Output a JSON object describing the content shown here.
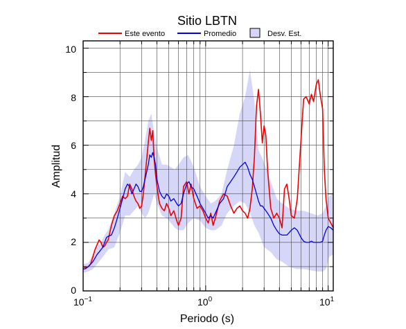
{
  "chart_data": {
    "type": "line",
    "title": "Sitio LBTN",
    "xlabel": "Periodo (s)",
    "ylabel": "Amplitud",
    "xscale": "log",
    "xlim": [
      0.1,
      11
    ],
    "ylim": [
      0,
      10.3
    ],
    "grid": true,
    "legend_position": "top",
    "legend": {
      "event": "Este evento",
      "mean": "Promedio",
      "std": "Desv. Est."
    },
    "x_ticks": [
      {
        "base": "10",
        "exp": "−1"
      },
      {
        "base": "10",
        "exp": "0"
      },
      {
        "base": "10",
        "exp": "1"
      }
    ],
    "y_ticks": [
      "0",
      "2",
      "4",
      "6",
      "8",
      "10"
    ],
    "colors": {
      "event": "#ee0000",
      "mean": "#0000dd",
      "band": "#d6d6f8",
      "band_edge": "#000000",
      "grid": "#444444"
    },
    "series": [
      {
        "name": "Este evento",
        "x": [
          0.1,
          0.105,
          0.11,
          0.115,
          0.12,
          0.125,
          0.13,
          0.135,
          0.14,
          0.145,
          0.15,
          0.155,
          0.16,
          0.17,
          0.18,
          0.19,
          0.2,
          0.21,
          0.22,
          0.23,
          0.24,
          0.25,
          0.26,
          0.27,
          0.28,
          0.29,
          0.3,
          0.31,
          0.32,
          0.33,
          0.34,
          0.35,
          0.36,
          0.37,
          0.38,
          0.39,
          0.4,
          0.42,
          0.44,
          0.46,
          0.48,
          0.5,
          0.52,
          0.55,
          0.58,
          0.6,
          0.63,
          0.66,
          0.7,
          0.73,
          0.76,
          0.8,
          0.85,
          0.9,
          0.95,
          1.0,
          1.05,
          1.1,
          1.15,
          1.2,
          1.3,
          1.4,
          1.5,
          1.6,
          1.7,
          1.8,
          1.9,
          2.0,
          2.1,
          2.2,
          2.3,
          2.4,
          2.5,
          2.6,
          2.7,
          2.8,
          2.9,
          3.0,
          3.1,
          3.2,
          3.4,
          3.6,
          3.8,
          4.0,
          4.2,
          4.4,
          4.6,
          4.8,
          5.0,
          5.3,
          5.6,
          6.0,
          6.3,
          6.6,
          7.0,
          7.3,
          7.6,
          8.0,
          8.3,
          8.6,
          9.0,
          9.3,
          9.6,
          10.0,
          10.5,
          11.0
        ],
        "y": [
          1.0,
          0.95,
          1.0,
          1.1,
          1.4,
          1.7,
          1.9,
          2.1,
          2.0,
          1.8,
          1.85,
          2.0,
          2.1,
          2.7,
          3.1,
          3.3,
          3.6,
          3.9,
          3.8,
          3.9,
          4.4,
          4.2,
          3.9,
          3.7,
          3.6,
          3.4,
          3.5,
          4.0,
          4.7,
          5.4,
          6.1,
          6.7,
          6.2,
          6.6,
          5.4,
          4.8,
          4.3,
          3.6,
          3.4,
          3.3,
          3.6,
          3.4,
          3.1,
          3.3,
          2.9,
          2.7,
          3.0,
          4.3,
          4.5,
          4.0,
          4.4,
          3.8,
          3.4,
          3.5,
          3.3,
          3.0,
          2.8,
          3.2,
          2.7,
          3.0,
          3.7,
          4.0,
          3.9,
          3.5,
          3.2,
          3.4,
          3.5,
          3.3,
          3.2,
          3.0,
          3.4,
          4.2,
          5.5,
          7.6,
          8.3,
          7.3,
          6.1,
          6.8,
          6.4,
          5.0,
          3.4,
          3.0,
          3.2,
          3.0,
          2.6,
          4.2,
          4.4,
          3.8,
          3.1,
          3.0,
          3.8,
          6.2,
          7.9,
          8.0,
          7.7,
          8.1,
          7.8,
          8.5,
          8.7,
          8.1,
          7.5,
          5.0,
          3.8,
          3.0,
          2.8,
          2.6
        ]
      },
      {
        "name": "Promedio",
        "x": [
          0.1,
          0.105,
          0.11,
          0.115,
          0.12,
          0.125,
          0.13,
          0.135,
          0.14,
          0.145,
          0.15,
          0.155,
          0.16,
          0.17,
          0.18,
          0.19,
          0.2,
          0.21,
          0.22,
          0.23,
          0.24,
          0.25,
          0.26,
          0.27,
          0.28,
          0.29,
          0.3,
          0.31,
          0.32,
          0.33,
          0.34,
          0.35,
          0.36,
          0.37,
          0.38,
          0.39,
          0.4,
          0.42,
          0.44,
          0.46,
          0.48,
          0.5,
          0.52,
          0.55,
          0.58,
          0.6,
          0.63,
          0.66,
          0.7,
          0.73,
          0.76,
          0.8,
          0.85,
          0.9,
          0.95,
          1.0,
          1.05,
          1.1,
          1.15,
          1.2,
          1.3,
          1.4,
          1.5,
          1.6,
          1.7,
          1.8,
          1.9,
          2.0,
          2.1,
          2.2,
          2.3,
          2.4,
          2.5,
          2.6,
          2.7,
          2.8,
          2.9,
          3.0,
          3.1,
          3.2,
          3.4,
          3.6,
          3.8,
          4.0,
          4.2,
          4.4,
          4.6,
          4.8,
          5.0,
          5.3,
          5.6,
          6.0,
          6.3,
          6.6,
          7.0,
          7.3,
          7.6,
          8.0,
          8.3,
          8.6,
          9.0,
          9.3,
          9.6,
          10.0,
          10.5,
          11.0
        ],
        "y": [
          0.9,
          0.92,
          1.0,
          1.1,
          1.2,
          1.35,
          1.5,
          1.6,
          1.7,
          1.8,
          2.0,
          2.2,
          2.25,
          2.3,
          2.6,
          3.0,
          3.4,
          3.8,
          4.2,
          4.4,
          4.3,
          4.0,
          4.2,
          4.4,
          4.3,
          4.1,
          4.1,
          4.3,
          4.6,
          4.9,
          5.2,
          5.6,
          5.5,
          5.7,
          5.5,
          5.2,
          4.6,
          4.1,
          3.9,
          3.8,
          4.0,
          3.9,
          3.7,
          3.8,
          3.6,
          3.5,
          3.6,
          4.0,
          4.4,
          4.5,
          4.3,
          4.2,
          3.9,
          3.6,
          3.4,
          3.2,
          3.0,
          3.1,
          3.0,
          3.2,
          3.6,
          3.8,
          4.3,
          4.5,
          4.7,
          4.9,
          5.1,
          5.2,
          5.3,
          5.1,
          4.8,
          4.6,
          4.3,
          4.0,
          3.7,
          3.5,
          3.5,
          3.4,
          3.3,
          3.2,
          3.0,
          2.7,
          2.5,
          2.35,
          2.3,
          2.3,
          2.3,
          2.4,
          2.5,
          2.6,
          2.5,
          2.2,
          2.05,
          2.0,
          2.0,
          2.05,
          2.0,
          2.0,
          2.0,
          2.0,
          2.05,
          2.3,
          2.5,
          2.65,
          2.6,
          2.5
        ]
      }
    ],
    "std_band": {
      "x": [
        0.1,
        0.11,
        0.12,
        0.13,
        0.14,
        0.15,
        0.16,
        0.18,
        0.2,
        0.22,
        0.24,
        0.26,
        0.28,
        0.3,
        0.32,
        0.34,
        0.36,
        0.38,
        0.4,
        0.44,
        0.48,
        0.52,
        0.56,
        0.6,
        0.66,
        0.72,
        0.8,
        0.9,
        1.0,
        1.1,
        1.2,
        1.35,
        1.5,
        1.7,
        1.9,
        2.1,
        2.3,
        2.5,
        2.7,
        3.0,
        3.4,
        3.8,
        4.2,
        4.8,
        5.5,
        6.3,
        7.2,
        8.2,
        9.0,
        9.6,
        10.2,
        11.0
      ],
      "upper": [
        1.1,
        1.15,
        1.5,
        1.8,
        2.0,
        2.3,
        2.5,
        3.2,
        3.9,
        4.9,
        4.7,
        5.0,
        5.2,
        5.5,
        6.2,
        7.0,
        7.3,
        6.5,
        5.9,
        5.2,
        5.2,
        5.1,
        5.0,
        5.2,
        5.5,
        5.6,
        5.1,
        4.3,
        3.9,
        3.6,
        3.7,
        4.0,
        5.0,
        6.0,
        7.3,
        8.0,
        9.1,
        7.8,
        5.8,
        5.3,
        4.5,
        3.8,
        3.6,
        3.4,
        3.3,
        3.3,
        3.2,
        3.1,
        3.2,
        3.5,
        3.9,
        4.0
      ],
      "lower": [
        0.75,
        0.8,
        0.9,
        1.1,
        1.3,
        1.5,
        1.7,
        1.8,
        2.4,
        3.1,
        3.1,
        3.3,
        3.5,
        3.2,
        3.0,
        3.2,
        3.6,
        4.0,
        3.6,
        3.1,
        3.0,
        2.8,
        2.6,
        2.5,
        2.5,
        2.8,
        3.0,
        2.9,
        2.6,
        2.5,
        2.5,
        2.7,
        3.2,
        3.5,
        3.7,
        3.6,
        3.2,
        2.7,
        2.4,
        1.8,
        1.6,
        1.3,
        1.2,
        1.0,
        0.9,
        0.9,
        0.85,
        0.8,
        0.8,
        0.9,
        1.4,
        1.5
      ]
    }
  }
}
